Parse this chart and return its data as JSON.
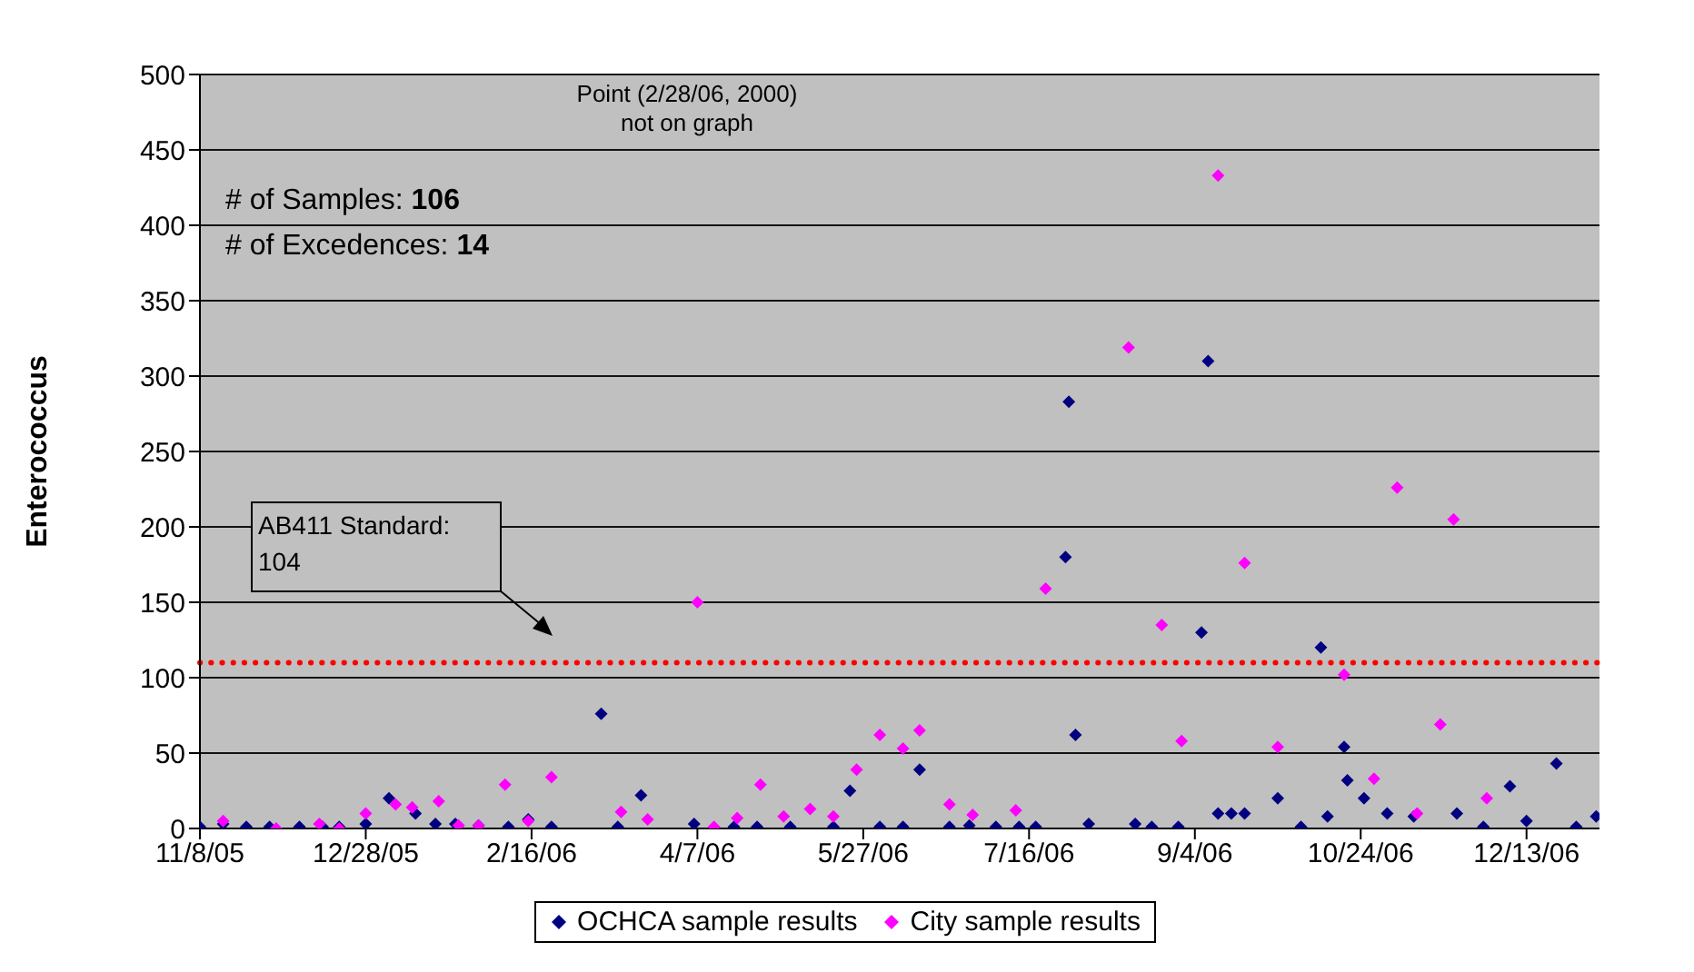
{
  "chart_data": {
    "type": "scatter",
    "ylabel": "Enterococcus",
    "xlim": [
      "2005-11-08",
      "2007-01-04"
    ],
    "xticks": [
      {
        "value": "2005-11-08",
        "label": "11/8/05"
      },
      {
        "value": "2005-12-28",
        "label": "12/28/05"
      },
      {
        "value": "2006-02-16",
        "label": "2/16/06"
      },
      {
        "value": "2006-04-07",
        "label": "4/7/06"
      },
      {
        "value": "2006-05-27",
        "label": "5/27/06"
      },
      {
        "value": "2006-07-16",
        "label": "7/16/06"
      },
      {
        "value": "2006-09-04",
        "label": "9/4/06"
      },
      {
        "value": "2006-10-24",
        "label": "10/24/06"
      },
      {
        "value": "2006-12-13",
        "label": "12/13/06"
      }
    ],
    "ylim": [
      0,
      500
    ],
    "yticks": [
      0,
      50,
      100,
      150,
      200,
      250,
      300,
      350,
      400,
      450,
      500
    ],
    "grid": "y",
    "legend": "bottom",
    "marker": "diamond",
    "ref_lines": [
      {
        "axis": "y",
        "value": 110,
        "color": "#ff0000",
        "line_style": "dotted"
      }
    ],
    "annotations": [
      "Point (2/28/06, 2000) not on graph",
      "# of Samples: 106",
      "# of Excedences: 14",
      "AB411 Standard: 104"
    ],
    "series": [
      {
        "name": "OCHCA sample results",
        "color": "#000080",
        "x": [
          "2005-11-08",
          "2005-11-15",
          "2005-11-22",
          "2005-11-29",
          "2005-12-08",
          "2005-12-15",
          "2005-12-20",
          "2005-12-28",
          "2006-01-04",
          "2006-01-12",
          "2006-01-18",
          "2006-01-24",
          "2006-01-31",
          "2006-02-09",
          "2006-02-15",
          "2006-02-22",
          "2006-03-09",
          "2006-03-14",
          "2006-03-21",
          "2006-04-06",
          "2006-04-18",
          "2006-04-25",
          "2006-05-05",
          "2006-05-18",
          "2006-05-23",
          "2006-06-01",
          "2006-06-08",
          "2006-06-13",
          "2006-06-22",
          "2006-06-28",
          "2006-07-06",
          "2006-07-13",
          "2006-07-18",
          "2006-07-27",
          "2006-07-28",
          "2006-07-30",
          "2006-08-03",
          "2006-08-17",
          "2006-08-22",
          "2006-08-30",
          "2006-09-06",
          "2006-09-08",
          "2006-09-11",
          "2006-09-15",
          "2006-09-19",
          "2006-09-29",
          "2006-10-06",
          "2006-10-12",
          "2006-10-14",
          "2006-10-19",
          "2006-10-20",
          "2006-10-25",
          "2006-11-01",
          "2006-11-09",
          "2006-11-22",
          "2006-11-30",
          "2006-12-08",
          "2006-12-13",
          "2006-12-22",
          "2006-12-28",
          "2007-01-03"
        ],
        "values": [
          1,
          3,
          1,
          1,
          1,
          1,
          1,
          3,
          20,
          10,
          3,
          3,
          2,
          1,
          6,
          1,
          76,
          1,
          22,
          3,
          1,
          1,
          1,
          1,
          25,
          1,
          1,
          39,
          1,
          2,
          1,
          1,
          1,
          180,
          283,
          62,
          3,
          3,
          1,
          1,
          130,
          310,
          10,
          10,
          10,
          20,
          1,
          120,
          8,
          54,
          32,
          20,
          10,
          8,
          10,
          1,
          28,
          5,
          43,
          1,
          8
        ]
      },
      {
        "name": "City sample results",
        "color": "#ff00ff",
        "x": [
          "2005-11-15",
          "2005-12-01",
          "2005-12-14",
          "2005-12-20",
          "2005-12-28",
          "2006-01-06",
          "2006-01-11",
          "2006-01-19",
          "2006-01-25",
          "2006-01-31",
          "2006-02-08",
          "2006-02-15",
          "2006-02-22",
          "2006-03-15",
          "2006-03-23",
          "2006-04-07",
          "2006-04-12",
          "2006-04-19",
          "2006-04-26",
          "2006-05-03",
          "2006-05-11",
          "2006-05-18",
          "2006-05-25",
          "2006-06-01",
          "2006-06-08",
          "2006-06-13",
          "2006-06-22",
          "2006-06-29",
          "2006-07-12",
          "2006-07-21",
          "2006-08-15",
          "2006-08-25",
          "2006-08-31",
          "2006-09-11",
          "2006-09-19",
          "2006-09-29",
          "2006-10-19",
          "2006-10-28",
          "2006-11-04",
          "2006-11-10",
          "2006-11-17",
          "2006-11-21",
          "2006-12-01"
        ],
        "values": [
          5,
          0,
          3,
          0,
          10,
          16,
          14,
          18,
          2,
          2,
          29,
          5,
          34,
          11,
          6,
          150,
          1,
          7,
          29,
          8,
          13,
          8,
          39,
          62,
          53,
          65,
          16,
          9,
          12,
          159,
          319,
          135,
          58,
          433,
          176,
          54,
          102,
          33,
          226,
          10,
          69,
          205,
          20
        ]
      }
    ]
  }
}
